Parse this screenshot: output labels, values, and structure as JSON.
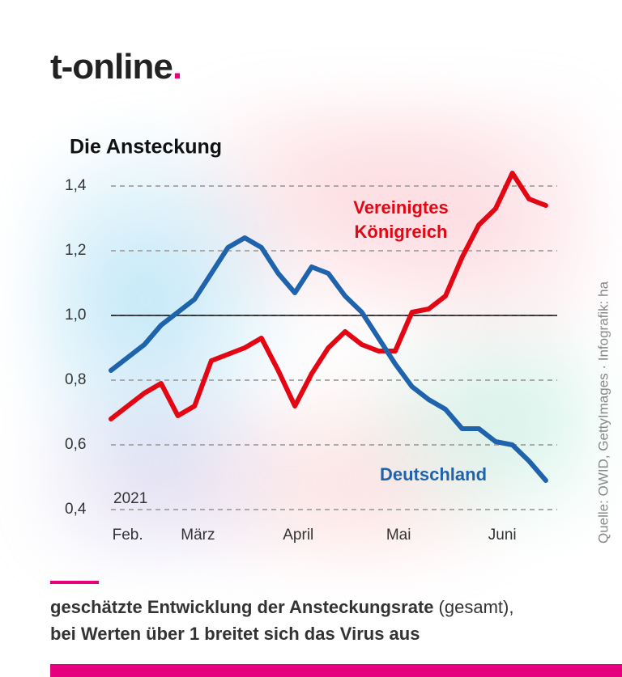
{
  "brand": "t-online",
  "chart_data": {
    "type": "line",
    "title": "Die Ansteckung",
    "annotation": "2021",
    "source": "Quelle: OWID, GettyImages · Infografik: ha",
    "x": [
      0,
      5,
      10,
      15,
      20,
      25,
      30,
      35,
      40,
      45,
      50,
      55,
      60,
      65,
      70,
      75,
      80,
      85,
      90,
      95,
      100,
      105,
      110,
      115,
      120,
      125,
      130
    ],
    "xlim": [
      0,
      131
    ],
    "xticks": [
      {
        "value": 5,
        "label": "Feb."
      },
      {
        "value": 26,
        "label": "März"
      },
      {
        "value": 56,
        "label": "April"
      },
      {
        "value": 86,
        "label": "Mai"
      },
      {
        "value": 117,
        "label": "Juni"
      }
    ],
    "ylim": [
      0.4,
      1.4
    ],
    "yticks": [
      {
        "value": 0.4,
        "label": "0,4"
      },
      {
        "value": 0.6,
        "label": "0,6"
      },
      {
        "value": 0.8,
        "label": "0,8"
      },
      {
        "value": 1.0,
        "label": "1,0"
      },
      {
        "value": 1.2,
        "label": "1,2"
      },
      {
        "value": 1.4,
        "label": "1,4"
      }
    ],
    "reference_line": 1.0,
    "grid": true,
    "series": [
      {
        "name": "Vereinigtes Königreich",
        "color": "#e30613",
        "values": [
          0.68,
          0.72,
          0.76,
          0.79,
          0.69,
          0.72,
          0.86,
          0.88,
          0.9,
          0.93,
          0.83,
          0.72,
          0.82,
          0.9,
          0.95,
          0.91,
          0.89,
          0.89,
          1.01,
          1.02,
          1.06,
          1.18,
          1.28,
          1.33,
          1.44,
          1.36,
          1.34
        ]
      },
      {
        "name": "Deutschland",
        "color": "#1f63ad",
        "values": [
          0.83,
          0.87,
          0.91,
          0.97,
          1.01,
          1.05,
          1.13,
          1.21,
          1.24,
          1.21,
          1.13,
          1.07,
          1.15,
          1.13,
          1.06,
          1.01,
          0.93,
          0.85,
          0.78,
          0.74,
          0.71,
          0.65,
          0.65,
          0.61,
          0.6,
          0.55,
          0.49
        ]
      }
    ]
  },
  "caption": {
    "bold": "geschätzte Entwicklung der Ansteckungsrate",
    "regular": "(gesamt),",
    "line2": "bei Werten über 1 breitet sich das Virus aus"
  }
}
